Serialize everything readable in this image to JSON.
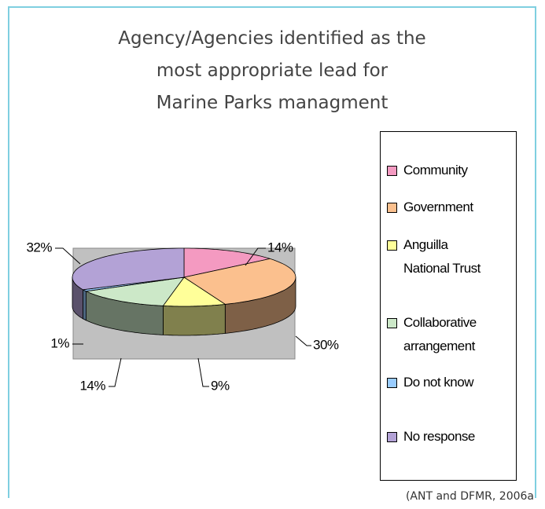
{
  "chart_data": {
    "type": "pie",
    "title": [
      "Agency/Agencies identified as the",
      "most appropriate lead for",
      "Marine Parks managment"
    ],
    "categories": [
      "Community",
      "Government",
      "Anguilla National Trust",
      "Collaborative arrangement",
      "Do not know",
      "No response"
    ],
    "values": [
      14,
      30,
      9,
      14,
      1,
      32
    ],
    "value_labels": [
      "14%",
      "30%",
      "9%",
      "14%",
      "1%",
      "32%"
    ],
    "colors": [
      "#f49ac1",
      "#fbc08e",
      "#ffff99",
      "#cce8c8",
      "#99ccff",
      "#b3a2d6"
    ],
    "source": "(ANT and DFMR, 2006a",
    "legend": "right"
  }
}
